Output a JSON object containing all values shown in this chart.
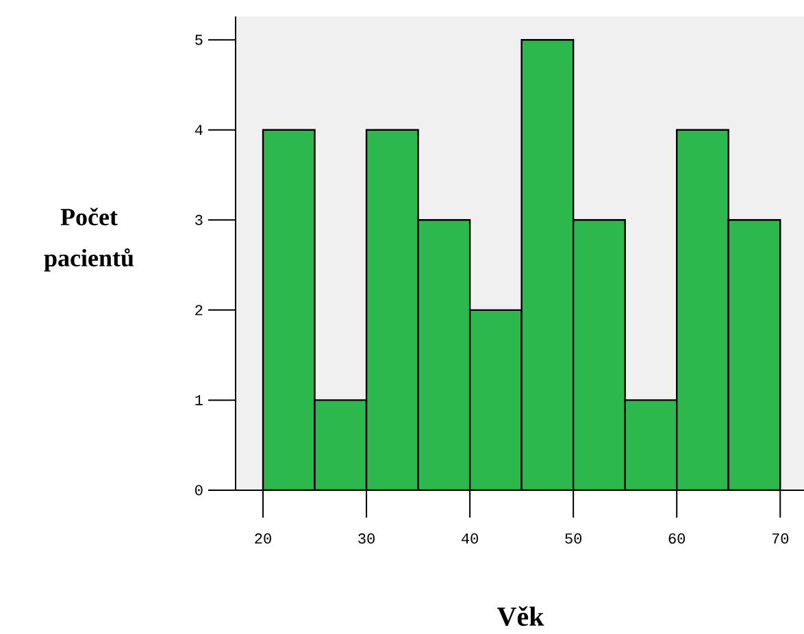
{
  "chart_data": {
    "type": "histogram",
    "xlabel": "Věk",
    "ylabel": "Počet pacientů",
    "bins": [
      20,
      25,
      30,
      35,
      40,
      45,
      50,
      55,
      60,
      65,
      70
    ],
    "values": [
      4,
      1,
      4,
      3,
      2,
      5,
      3,
      1,
      4,
      3
    ],
    "color": "#2db84d",
    "xlim": [
      17.35,
      72.3
    ],
    "ylim": [
      0,
      5.26
    ],
    "xticks": [
      20,
      30,
      40,
      50,
      60,
      70
    ],
    "yticks": [
      0,
      1,
      2,
      3,
      4,
      5
    ],
    "grid": false
  }
}
